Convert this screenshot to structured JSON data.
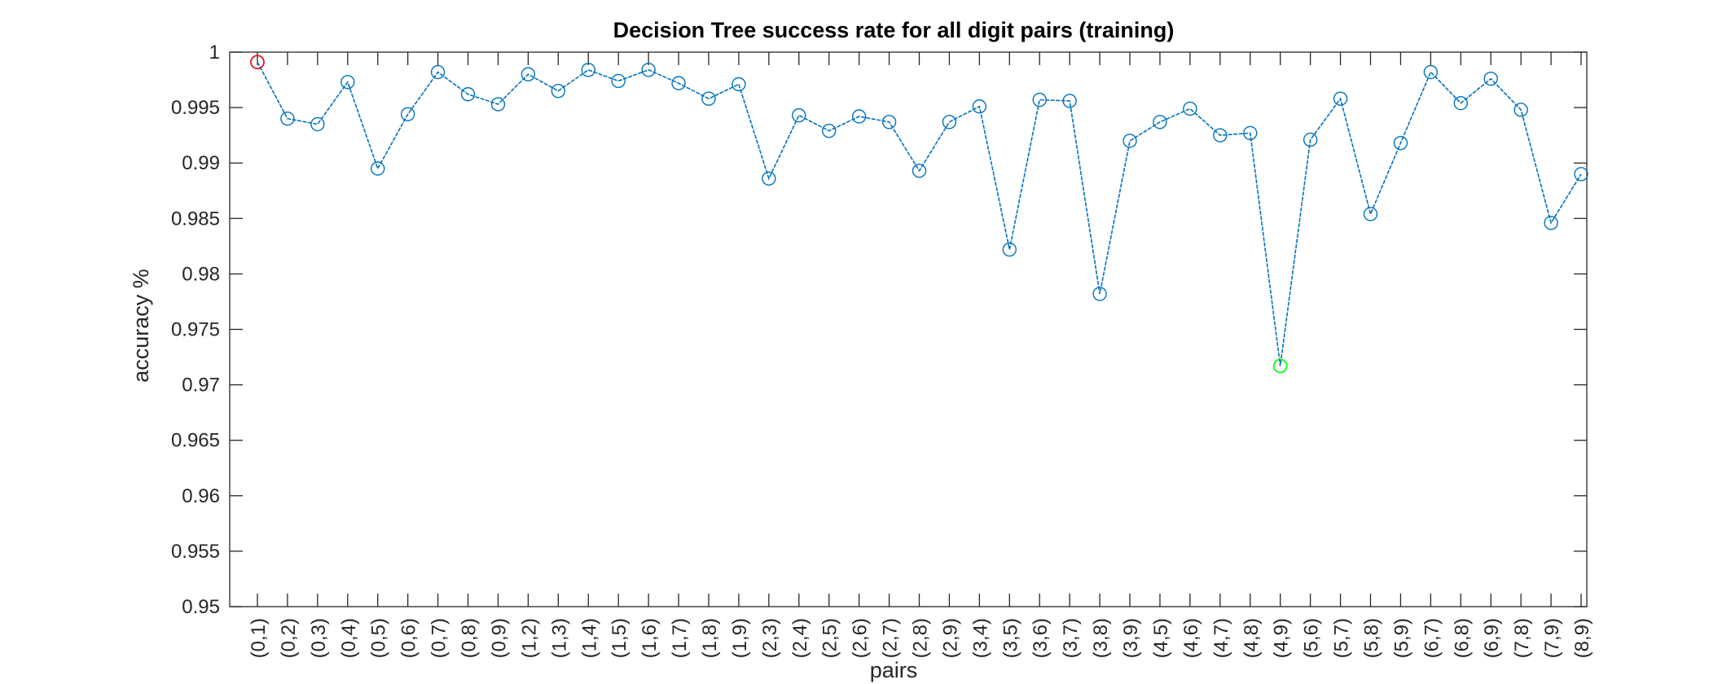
{
  "chart_data": {
    "type": "line",
    "title": "Decision Tree success rate for all digit pairs (training)",
    "xlabel": "pairs",
    "ylabel": "accuracy %",
    "ylim": [
      0.95,
      1
    ],
    "yticks": [
      "0.95",
      "0.955",
      "0.96",
      "0.965",
      "0.97",
      "0.975",
      "0.98",
      "0.985",
      "0.99",
      "0.995",
      "1"
    ],
    "grid": false,
    "categories": [
      "(0,1)",
      "(0,2)",
      "(0,3)",
      "(0,4)",
      "(0,5)",
      "(0,6)",
      "(0,7)",
      "(0,8)",
      "(0,9)",
      "(1,2)",
      "(1,3)",
      "(1,4)",
      "(1,5)",
      "(1,6)",
      "(1,7)",
      "(1,8)",
      "(1,9)",
      "(2,3)",
      "(2,4)",
      "(2,5)",
      "(2,6)",
      "(2,7)",
      "(2,8)",
      "(2,9)",
      "(3,4)",
      "(3,5)",
      "(3,6)",
      "(3,7)",
      "(3,8)",
      "(3,9)",
      "(4,5)",
      "(4,6)",
      "(4,7)",
      "(4,8)",
      "(4,9)",
      "(5,6)",
      "(5,7)",
      "(5,8)",
      "(5,9)",
      "(6,7)",
      "(6,8)",
      "(6,9)",
      "(7,8)",
      "(7,9)",
      "(8,9)"
    ],
    "series": [
      {
        "values": [
          0.9991,
          0.994,
          0.9935,
          0.9973,
          0.9895,
          0.9944,
          0.9982,
          0.9962,
          0.9953,
          0.998,
          0.9965,
          0.9984,
          0.9974,
          0.9984,
          0.9972,
          0.9958,
          0.9971,
          0.9886,
          0.9943,
          0.9929,
          0.9942,
          0.9937,
          0.9893,
          0.9937,
          0.9951,
          0.9822,
          0.9957,
          0.9956,
          0.9782,
          0.992,
          0.9937,
          0.9949,
          0.9925,
          0.9927,
          0.9717,
          0.9921,
          0.9958,
          0.9854,
          0.9918,
          0.9982,
          0.9954,
          0.9976,
          0.9948,
          0.9846,
          0.989
        ],
        "color": "#0072BD",
        "marker": "circle"
      }
    ],
    "highlights": {
      "max": {
        "category": "(0,1)",
        "color": "#FF0000"
      },
      "min": {
        "category": "(4,9)",
        "color": "#00FF00"
      }
    }
  }
}
